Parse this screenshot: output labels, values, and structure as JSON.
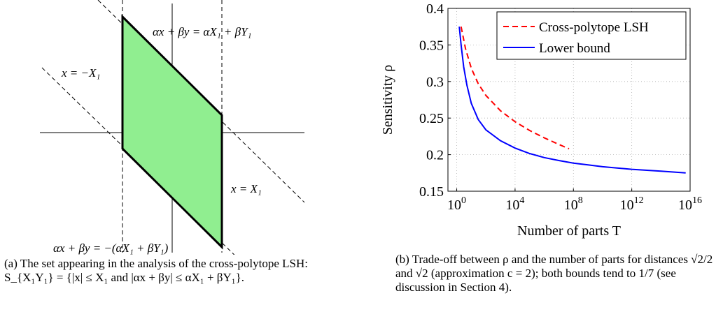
{
  "figure_a": {
    "labels": {
      "line_top": "αx + βy = αX₁ + βY₁",
      "line_left": "x = −X₁",
      "line_right": "x = X₁",
      "line_bottom": "αx + βy = −(αX₁ + βY₁)"
    },
    "fill_color": "#90ee90",
    "caption": "(a) The set appearing in the analysis of the cross-polytope LSH: S_{X₁Y₁} = {|x| ≤ X₁ and |αx + βy| ≤ αX₁ + βY₁}."
  },
  "figure_b": {
    "caption": "(b) Trade-off between ρ and the number of parts for distances √2/2 and √2 (approximation c = 2); both bounds tend to 1/7 (see discussion in Section 4)."
  },
  "chart_data": {
    "type": "line",
    "xlabel": "Number of parts T",
    "ylabel": "Sensitivity ρ",
    "x_scale": "log",
    "xlim": [
      0.25,
      1e+16
    ],
    "ylim": [
      0.15,
      0.4
    ],
    "xticks": [
      "10^0",
      "10^4",
      "10^8",
      "10^12",
      "10^16"
    ],
    "yticks": [
      "0.15",
      "0.2",
      "0.25",
      "0.3",
      "0.35",
      "0.4"
    ],
    "grid": true,
    "legend_position": "top-right",
    "series": [
      {
        "name": "Cross-polytope LSH",
        "color": "#ff0000",
        "style": "dashed",
        "x": [
          2,
          4,
          10,
          30,
          100,
          1000,
          10000,
          100000,
          1000000,
          10000000,
          50000000
        ],
        "y": [
          0.375,
          0.345,
          0.318,
          0.297,
          0.281,
          0.26,
          0.245,
          0.233,
          0.223,
          0.214,
          0.208
        ]
      },
      {
        "name": "Lower bound",
        "color": "#0000ff",
        "style": "solid",
        "x": [
          1.5,
          2,
          3,
          5,
          10,
          30,
          100,
          1000,
          10000,
          100000,
          1000000,
          10000000,
          100000000,
          1000000000.0,
          10000000000.0,
          1000000000000.0,
          100000000000000.0,
          5000000000000000.0
        ],
        "y": [
          0.375,
          0.35,
          0.32,
          0.295,
          0.27,
          0.248,
          0.234,
          0.219,
          0.209,
          0.2015,
          0.196,
          0.192,
          0.1885,
          0.186,
          0.1835,
          0.18,
          0.1775,
          0.175
        ]
      }
    ]
  }
}
